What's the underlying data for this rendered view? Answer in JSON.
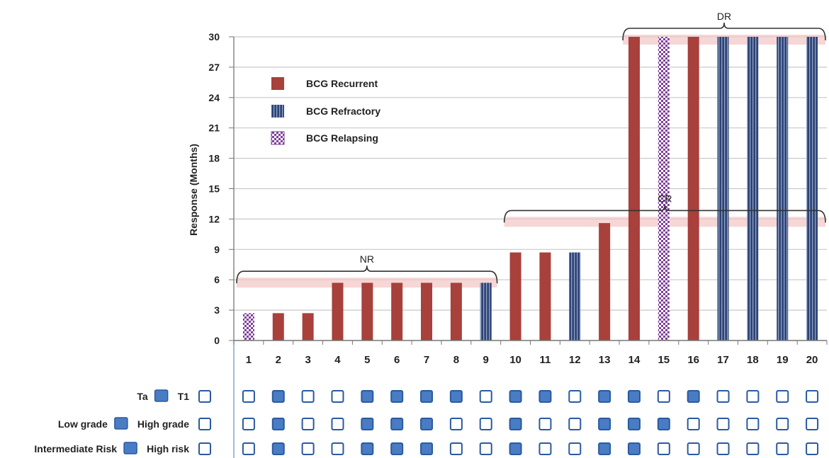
{
  "chart_data": {
    "type": "bar",
    "ylabel": "Response (Months)",
    "xlabel": "",
    "ylim": [
      0,
      30
    ],
    "yticks": [
      "0",
      "3",
      "6",
      "9",
      "12",
      "15",
      "18",
      "21",
      "24",
      "27",
      "30"
    ],
    "categories": [
      "1",
      "2",
      "3",
      "4",
      "5",
      "6",
      "7",
      "8",
      "9",
      "10",
      "11",
      "12",
      "13",
      "14",
      "15",
      "16",
      "17",
      "18",
      "19",
      "20"
    ],
    "values": [
      2.7,
      2.7,
      2.7,
      5.7,
      5.7,
      5.7,
      5.7,
      5.7,
      5.7,
      8.7,
      8.7,
      8.7,
      11.6,
      30,
      30,
      30,
      30,
      30,
      30,
      30
    ],
    "category_series": [
      "relapsing",
      "recurrent",
      "recurrent",
      "recurrent",
      "recurrent",
      "recurrent",
      "recurrent",
      "recurrent",
      "refractory",
      "recurrent",
      "recurrent",
      "refractory",
      "recurrent",
      "recurrent",
      "relapsing",
      "recurrent",
      "refractory",
      "refractory",
      "refractory",
      "refractory"
    ],
    "series": [
      {
        "key": "recurrent",
        "name": "BCG Recurrent",
        "color": "#a8403c",
        "pattern": "solid"
      },
      {
        "key": "refractory",
        "name": "BCG Refractory",
        "color": "#2e4373",
        "pattern": "vertical-stripes"
      },
      {
        "key": "relapsing",
        "name": "BCG Relapsing",
        "color": "#7f3f9a",
        "pattern": "checkerboard"
      }
    ],
    "legend_position": "top-left",
    "grid": true,
    "brackets": [
      {
        "label": "NR",
        "from_category": "1",
        "to_category": "9",
        "level": 6
      },
      {
        "label": "CR",
        "from_category": "10",
        "to_category": "20",
        "level": 12
      },
      {
        "label": "DR",
        "from_category": "14",
        "to_category": "20",
        "level": 30
      }
    ],
    "bracket_band_color": "#f3c4c4"
  },
  "feature_table": {
    "filled_color": "#4a7cc4",
    "outline_color": "#2a5aa0",
    "rows": [
      {
        "label_filled": "Ta",
        "label_empty": "T1",
        "values": [
          0,
          1,
          0,
          0,
          1,
          1,
          1,
          1,
          0,
          1,
          1,
          0,
          1,
          1,
          0,
          1,
          0,
          0,
          0,
          0
        ]
      },
      {
        "label_filled": "Low grade",
        "label_empty": "High grade",
        "values": [
          0,
          1,
          0,
          0,
          1,
          1,
          1,
          0,
          0,
          1,
          0,
          0,
          1,
          1,
          1,
          0,
          0,
          0,
          0,
          0
        ]
      },
      {
        "label_filled": "Intermediate Risk",
        "label_empty": "High risk",
        "values": [
          0,
          1,
          0,
          0,
          1,
          1,
          1,
          0,
          0,
          1,
          0,
          0,
          1,
          1,
          0,
          0,
          0,
          0,
          0,
          0
        ]
      }
    ]
  }
}
